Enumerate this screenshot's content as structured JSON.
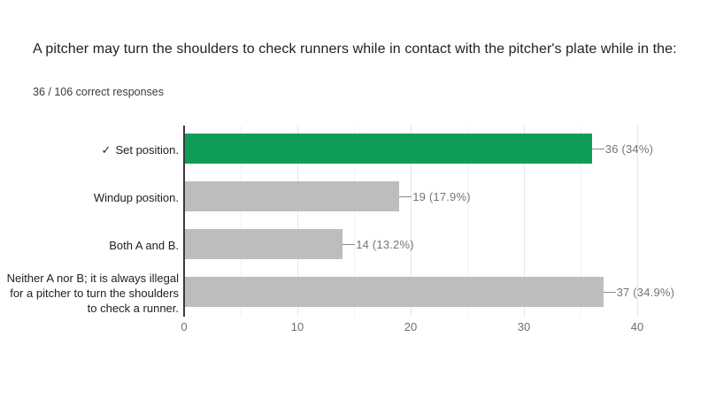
{
  "chart_data": {
    "type": "bar",
    "orientation": "horizontal",
    "title": "A pitcher may turn the shoulders to check runners while in contact with the pitcher's plate while in the:",
    "subtitle": "36 / 106 correct responses",
    "categories": [
      "Set position.",
      "Windup position.",
      "Both A and B.",
      "Neither A nor B; it is always illegal for a pitcher to turn the shoulders to check a runner."
    ],
    "values": [
      36,
      19,
      14,
      37
    ],
    "annotations": [
      "36 (34%)",
      "19 (17.9%)",
      "14 (13.2%)",
      "37 (34.9%)"
    ],
    "correct_index": 0,
    "check_glyph": "✓",
    "xlim": [
      0,
      40
    ],
    "xticks": [
      "0",
      "10",
      "20",
      "30",
      "40"
    ],
    "minor_gridline_step": 5,
    "legend_position": "none",
    "grid": true,
    "colors": {
      "correct_bar": "#109d58",
      "other_bar": "#bdbdbd",
      "annotation_text": "#757575",
      "axis_tick_text": "#6e6e6e",
      "gridline_major": "#e6e6e6",
      "gridline_minor": "#f2f2f2",
      "axis_line": "#3a3a3a",
      "title_text": "#212121",
      "background": "#ffffff"
    }
  }
}
